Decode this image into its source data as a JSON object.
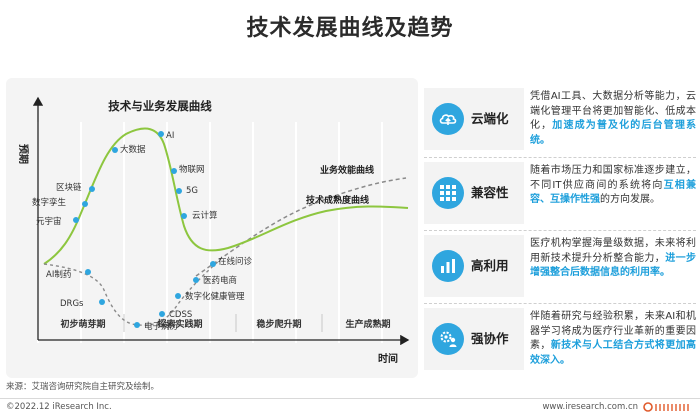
{
  "page": {
    "title": "技术发展曲线及趋势"
  },
  "diagram": {
    "title": "技术与业务发展曲线",
    "y_axis_label": "预期",
    "x_axis_label": "时间",
    "curves": {
      "business": "业务效能曲线",
      "maturity": "技术成熟度曲线"
    },
    "upper_curve_points": [
      "元宇宙",
      "数字孪生",
      "区块链",
      "大数据",
      "AI",
      "物联网",
      "5G",
      "云计算"
    ],
    "lower_curve_points": [
      "AI制药",
      "DRGs",
      "电子病历",
      "CDSS",
      "数字化健康管理",
      "医药电商",
      "在线问诊"
    ],
    "phases": [
      "初步萌芽期",
      "探索实践期",
      "稳步爬升期",
      "生产成熟期"
    ],
    "colors": {
      "panel": "#f4f4f4",
      "grid": "#ffffff",
      "upper_curve": "#8dc63f",
      "dots": "#2fa6df",
      "lower_curve": "#8a8a8a"
    }
  },
  "trends": [
    {
      "icon": "cloud-upload-icon",
      "name": "云端化",
      "text": "凭借AI工具、大数据分析等能力，云端化管理平台将更加智能化、低成本化，",
      "highlight": "加速成为普及化的后台管理系统。"
    },
    {
      "icon": "grid-dots-icon",
      "name": "兼容性",
      "text": "随着市场压力和国家标准逐步建立，不同IT供应商间的系统将向",
      "highlight": "互相兼容、互操作性强",
      "text_after": "的方向发展。"
    },
    {
      "icon": "bar-chart-icon",
      "name": "高利用",
      "text": "医疗机构掌握海量级数据，未来将利用新技术提升分析整合能力，",
      "highlight": "进一步增强整合后数据信息的利用率。"
    },
    {
      "icon": "gear-person-icon",
      "name": "强协作",
      "text": "伴随着研究与经验积累，未来AI和机器学习将成为医疗行业革新的重要因素，",
      "highlight": "新技术与人工结合方式将更加高效深入。"
    }
  ],
  "source": "来源：艾瑞咨询研究院自主研究及绘制。",
  "footer": {
    "copyright": "©2022.12 iResearch Inc.",
    "website": "www.iresearch.com.cn"
  }
}
